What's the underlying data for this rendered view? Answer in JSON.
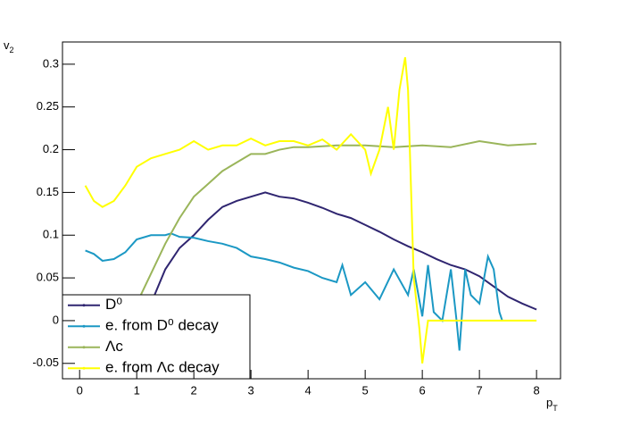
{
  "chart_data": {
    "type": "line",
    "xlabel": {
      "base": "p",
      "sub": "T"
    },
    "ylabel": {
      "base": "v",
      "sub": "2"
    },
    "xlim": [
      -0.3,
      8.42
    ],
    "ylim": [
      -0.068,
      0.326
    ],
    "xticks": [
      0,
      1,
      2,
      3,
      4,
      5,
      6,
      7,
      8
    ],
    "yticks": [
      -0.05,
      0,
      0.05,
      0.1,
      0.15,
      0.2,
      0.25,
      0.3
    ],
    "legend": "bottom-left",
    "series": [
      {
        "name": "D⁰",
        "color": "#2f2570",
        "x": [
          1.0,
          1.25,
          1.5,
          1.75,
          2.0,
          2.25,
          2.5,
          2.75,
          3.0,
          3.25,
          3.5,
          3.75,
          4.0,
          4.25,
          4.5,
          4.75,
          5.0,
          5.25,
          5.5,
          5.75,
          6.0,
          6.25,
          6.5,
          6.75,
          7.0,
          7.25,
          7.5,
          7.75,
          8.0
        ],
        "values": [
          -0.02,
          0.02,
          0.06,
          0.085,
          0.1,
          0.118,
          0.133,
          0.14,
          0.145,
          0.15,
          0.145,
          0.143,
          0.138,
          0.132,
          0.125,
          0.12,
          0.112,
          0.104,
          0.095,
          0.087,
          0.08,
          0.072,
          0.065,
          0.06,
          0.052,
          0.04,
          0.028,
          0.02,
          0.013
        ]
      },
      {
        "name": "e. from D⁰ decay",
        "color": "#1b98c4",
        "x": [
          0.1,
          0.25,
          0.4,
          0.6,
          0.8,
          1.0,
          1.25,
          1.5,
          1.6,
          1.75,
          2.0,
          2.25,
          2.5,
          2.75,
          3.0,
          3.25,
          3.5,
          3.75,
          4.0,
          4.25,
          4.5,
          4.6,
          4.75,
          5.0,
          5.25,
          5.5,
          5.75,
          5.85,
          6.0,
          6.1,
          6.2,
          6.35,
          6.5,
          6.6,
          6.65,
          6.75,
          6.85,
          7.0,
          7.15,
          7.25,
          7.35,
          7.4
        ],
        "values": [
          0.082,
          0.078,
          0.07,
          0.072,
          0.08,
          0.095,
          0.1,
          0.1,
          0.102,
          0.098,
          0.097,
          0.093,
          0.09,
          0.085,
          0.075,
          0.072,
          0.068,
          0.062,
          0.058,
          0.05,
          0.045,
          0.065,
          0.03,
          0.045,
          0.025,
          0.06,
          0.03,
          0.06,
          0.005,
          0.065,
          0.01,
          0.0,
          0.06,
          0.0,
          -0.035,
          0.06,
          0.03,
          0.02,
          0.075,
          0.06,
          0.01,
          0.0
        ]
      },
      {
        "name": "Λc",
        "color": "#9ab55a",
        "x": [
          0.85,
          1.0,
          1.25,
          1.5,
          1.75,
          2.0,
          2.25,
          2.5,
          2.75,
          3.0,
          3.25,
          3.5,
          3.75,
          4.0,
          4.5,
          5.0,
          5.5,
          6.0,
          6.5,
          7.0,
          7.5,
          8.0
        ],
        "values": [
          -0.01,
          0.02,
          0.055,
          0.09,
          0.12,
          0.145,
          0.16,
          0.175,
          0.185,
          0.195,
          0.195,
          0.2,
          0.203,
          0.203,
          0.205,
          0.205,
          0.203,
          0.205,
          0.203,
          0.21,
          0.205,
          0.207
        ]
      },
      {
        "name": "e. from Λc decay",
        "color": "#ffff00",
        "x": [
          0.1,
          0.25,
          0.4,
          0.6,
          0.8,
          1.0,
          1.25,
          1.5,
          1.75,
          2.0,
          2.25,
          2.5,
          2.75,
          3.0,
          3.25,
          3.5,
          3.75,
          4.0,
          4.25,
          4.5,
          4.75,
          5.0,
          5.1,
          5.25,
          5.4,
          5.5,
          5.6,
          5.7,
          5.75,
          5.85,
          5.95,
          6.0,
          6.1,
          6.5,
          7.0,
          8.0
        ],
        "values": [
          0.158,
          0.14,
          0.133,
          0.14,
          0.158,
          0.18,
          0.19,
          0.195,
          0.2,
          0.21,
          0.2,
          0.205,
          0.205,
          0.213,
          0.205,
          0.21,
          0.21,
          0.205,
          0.212,
          0.2,
          0.218,
          0.2,
          0.172,
          0.2,
          0.25,
          0.2,
          0.27,
          0.308,
          0.27,
          0.05,
          -0.01,
          -0.05,
          0.0,
          0.0,
          0.0,
          0.0
        ]
      }
    ]
  }
}
